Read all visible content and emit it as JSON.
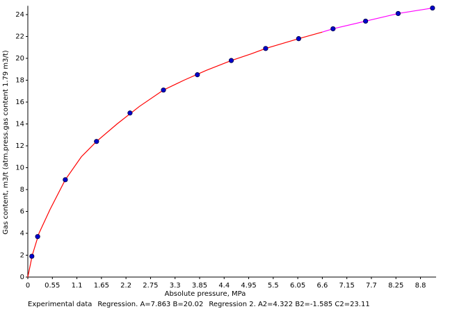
{
  "chart_data": {
    "type": "scatter",
    "xlabel": "Absolute pressure, MPa",
    "ylabel": "Gas content, m3/t (atm.press.gas content 1.79 m3/t)",
    "xlim": [
      0,
      9.15
    ],
    "ylim": [
      0,
      24.8
    ],
    "xticks": [
      0,
      0.55,
      1.1,
      1.65,
      2.2,
      2.75,
      3.3,
      3.85,
      4.4,
      4.95,
      5.5,
      6.05,
      6.6,
      7.15,
      7.7,
      8.25,
      8.8
    ],
    "yticks": [
      0,
      2,
      4,
      6,
      8,
      10,
      12,
      14,
      16,
      18,
      20,
      22,
      24
    ],
    "series": [
      {
        "name": "Experimental data",
        "color": "#0000cc",
        "kind": "points",
        "x": [
          0.09,
          0.22,
          0.84,
          1.54,
          2.29,
          3.04,
          3.8,
          4.56,
          5.33,
          6.07,
          6.84,
          7.57,
          8.3,
          9.07
        ],
        "values": [
          1.9,
          3.7,
          8.9,
          12.4,
          15.0,
          17.1,
          18.5,
          19.8,
          20.9,
          21.8,
          22.7,
          23.4,
          24.1,
          24.6
        ]
      },
      {
        "name": "Regression. A=7.863 B=20.02",
        "color": "#ff0000",
        "kind": "line",
        "x": [
          0,
          0.1,
          0.25,
          0.5,
          0.84,
          1.2,
          1.54,
          2,
          2.5,
          3.04,
          3.5,
          4,
          4.56,
          5,
          5.33,
          6.07,
          6.6
        ],
        "values": [
          0,
          2.0,
          4.0,
          6.2,
          8.9,
          11.0,
          12.4,
          14.0,
          15.6,
          17.1,
          18.0,
          18.9,
          19.8,
          20.4,
          20.9,
          21.8,
          22.4
        ]
      },
      {
        "name": "Regression 2. A2=4.322 B2=-1.585 C2=23.11",
        "color": "#ff00ff",
        "kind": "line",
        "x": [
          6.6,
          6.84,
          7.57,
          8.3,
          9.07
        ],
        "values": [
          22.4,
          22.7,
          23.4,
          24.1,
          24.6
        ]
      }
    ]
  }
}
